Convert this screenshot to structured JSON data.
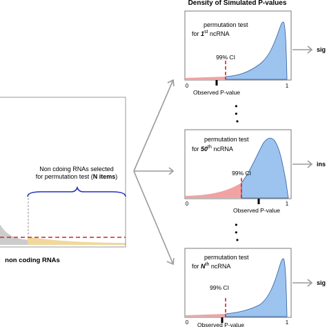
{
  "header": {
    "title": "Density of Simulated P-values"
  },
  "left_panel": {
    "bracket_label_line1": "Non cdoing RNAs selected",
    "bracket_label_line2_prefix": "for permutation test (",
    "bracket_label_line2_bold": "N items",
    "bracket_label_line2_suffix": ")",
    "xlabel": "non coding RNAs"
  },
  "dots": "•\n•\n•",
  "panels": [
    {
      "test_line1": "permutation test",
      "test_line2_prefix": "for ",
      "test_line2_bold": "1",
      "test_line2_sup": "st",
      "test_line2_suffix": " ncRNA",
      "ci_label": "99% CI",
      "xlabel": "Observed P-value",
      "tick_0": "0",
      "tick_1": "1",
      "result_label": "sig",
      "result_color": "#2e9e2e"
    },
    {
      "test_line1": "permutation test",
      "test_line2_prefix": "for ",
      "test_line2_bold": "50",
      "test_line2_sup": "th",
      "test_line2_suffix": " ncRNA",
      "ci_label": "99% CI",
      "xlabel": "Observed P-value",
      "tick_0": "0",
      "tick_1": "1",
      "result_label": "ins",
      "result_color": "#c0262b"
    },
    {
      "test_line1": "permutation test",
      "test_line2_prefix": "for ",
      "test_line2_bold": "N",
      "test_line2_sup": "th",
      "test_line2_suffix": " ncRNA",
      "ci_label": "99% CI",
      "xlabel": "Observed P-value",
      "tick_0": "0",
      "tick_1": "1",
      "result_label": "sig",
      "result_color": "#2e9e2e"
    }
  ],
  "colors": {
    "density_blue": "#9dc3ef",
    "tail_red": "#f1a3a3",
    "ci_line": "#d61f26",
    "bar_gray": "#9a9a9a",
    "bar_gold": "#e2b03a",
    "bracket_blue": "#1f2fbf",
    "arrow_gray": "#9a9a9a"
  }
}
